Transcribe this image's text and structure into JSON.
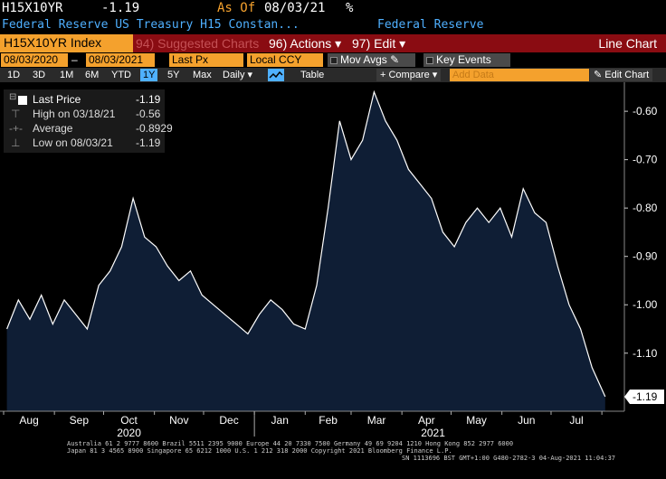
{
  "header": {
    "ticker": "H15X10YR",
    "last": "-1.19",
    "as_of_label": "As Of",
    "as_of_date": "08/03/21",
    "pct_icon": "%",
    "description": "Federal Reserve US Treasury H15 Constan...",
    "source": "Federal Reserve"
  },
  "redbar": {
    "index_label": "H15X10YR Index",
    "suggested": "94) Suggested Charts",
    "actions": "96) Actions",
    "edit": "97) Edit",
    "view_title": "Line Chart"
  },
  "params": {
    "start_date": "08/03/2020",
    "end_date": "08/03/2021",
    "field": "Last Px",
    "currency": "Local CCY",
    "mov_avgs": "Mov Avgs",
    "key_events": "Key Events"
  },
  "toolbar": {
    "periods": [
      "1D",
      "3D",
      "1M",
      "6M",
      "YTD",
      "1Y",
      "5Y",
      "Max"
    ],
    "selected_period": "1Y",
    "frequency": "Daily",
    "table": "Table",
    "compare": "+ Compare",
    "add_data_placeholder": "Add Data",
    "edit_chart": "Edit Chart"
  },
  "legend": {
    "last_price_label": "Last Price",
    "last_price_value": "-1.19",
    "high_label": "High on 03/18/21",
    "high_value": "-0.56",
    "average_label": "Average",
    "average_value": "-0.8929",
    "low_label": "Low on 08/03/21",
    "low_value": "-1.19"
  },
  "chart_data": {
    "type": "area",
    "x": [
      "2020-08-03",
      "2020-08-10",
      "2020-08-17",
      "2020-08-24",
      "2020-08-31",
      "2020-09-07",
      "2020-09-14",
      "2020-09-21",
      "2020-09-28",
      "2020-10-05",
      "2020-10-12",
      "2020-10-19",
      "2020-10-26",
      "2020-11-02",
      "2020-11-09",
      "2020-11-16",
      "2020-11-23",
      "2020-11-30",
      "2020-12-07",
      "2020-12-14",
      "2020-12-21",
      "2020-12-28",
      "2021-01-04",
      "2021-01-11",
      "2021-01-18",
      "2021-01-25",
      "2021-02-01",
      "2021-02-08",
      "2021-02-15",
      "2021-02-22",
      "2021-03-01",
      "2021-03-08",
      "2021-03-15",
      "2021-03-22",
      "2021-03-29",
      "2021-04-05",
      "2021-04-12",
      "2021-04-19",
      "2021-04-26",
      "2021-05-03",
      "2021-05-10",
      "2021-05-17",
      "2021-05-24",
      "2021-05-31",
      "2021-06-07",
      "2021-06-14",
      "2021-06-21",
      "2021-06-28",
      "2021-07-05",
      "2021-07-12",
      "2021-07-19",
      "2021-07-26",
      "2021-08-03"
    ],
    "y": [
      -1.05,
      -0.99,
      -1.03,
      -0.98,
      -1.04,
      -0.99,
      -1.02,
      -1.05,
      -0.96,
      -0.93,
      -0.88,
      -0.78,
      -0.86,
      -0.88,
      -0.92,
      -0.95,
      -0.93,
      -0.98,
      -1.0,
      -1.02,
      -1.04,
      -1.06,
      -1.02,
      -0.99,
      -1.01,
      -1.04,
      -1.05,
      -0.96,
      -0.8,
      -0.62,
      -0.7,
      -0.66,
      -0.56,
      -0.62,
      -0.66,
      -0.72,
      -0.75,
      -0.78,
      -0.85,
      -0.88,
      -0.83,
      -0.8,
      -0.83,
      -0.8,
      -0.86,
      -0.76,
      -0.81,
      -0.83,
      -0.92,
      -1.0,
      -1.05,
      -1.13,
      -1.19
    ],
    "x_tick_labels": [
      "Aug",
      "Sep",
      "Oct",
      "Nov",
      "Dec",
      "Jan",
      "Feb",
      "Mar",
      "Apr",
      "May",
      "Jun",
      "Jul"
    ],
    "year_labels": [
      "2020",
      "2021"
    ],
    "y_tick_labels": [
      "-0.60",
      "-0.70",
      "-0.80",
      "-0.90",
      "-1.00",
      "-1.10"
    ],
    "ylim": [
      -1.22,
      -0.54
    ],
    "last_value_label": "-1.19",
    "area_color": "#0f1e35",
    "line_color": "#ffffff",
    "grid": false
  },
  "footer": {
    "line1": "Australia 61 2 9777 8600 Brazil 5511 2395 9000 Europe 44 20 7330 7500 Germany 49 69 9204 1210 Hong Kong 852 2977 6000",
    "line2": "Japan 81 3 4565 8900       Singapore 65 6212 1000       U.S. 1 212 318 2000              Copyright 2021 Bloomberg Finance L.P.",
    "line3": "SN 1113696 BST  GMT+1:00 G480-2782-3 04-Aug-2021 11:04:37"
  }
}
